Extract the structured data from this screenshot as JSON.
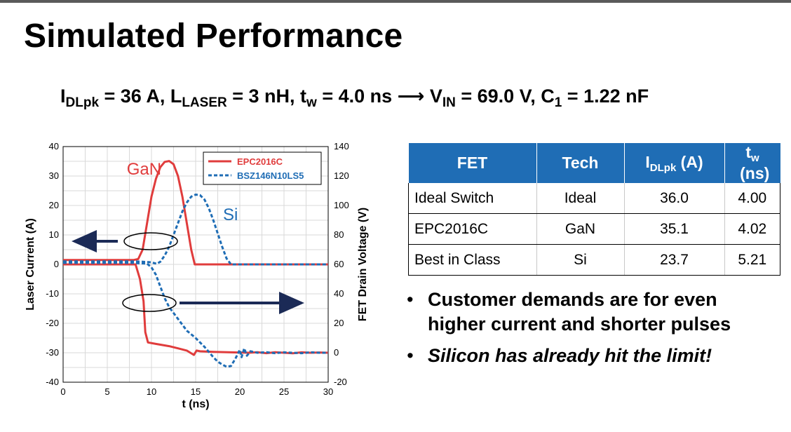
{
  "slide": {
    "title": "Simulated Performance",
    "equation": {
      "i_symbol": "I",
      "i_sub": "DLpk",
      "i_rest": " = 36 A, ",
      "l_symbol": "L",
      "l_sub": "LASER",
      "l_rest": " = 3 nH, ",
      "t_symbol": "t",
      "t_sub": "w",
      "t_rest": " = 4.0 ns ⟶ ",
      "v_symbol": "V",
      "v_sub": "IN",
      "v_rest": " = 69.0 V, ",
      "c_symbol": "C",
      "c_sub": "1",
      "c_rest": " = 1.22 nF"
    }
  },
  "table": {
    "headers": [
      {
        "text": "FET"
      },
      {
        "text": "Tech"
      },
      {
        "main": "I",
        "sub": "DLpk",
        "rest": " (A)"
      },
      {
        "main": "t",
        "sub": "w",
        "rest": " (ns)"
      }
    ],
    "rows": [
      [
        "Ideal Switch",
        "Ideal",
        "36.0",
        "4.00"
      ],
      [
        "EPC2016C",
        "GaN",
        "35.1",
        "4.02"
      ],
      [
        "Best in Class",
        "Si",
        "23.7",
        "5.21"
      ]
    ]
  },
  "bullets": [
    "Customer demands are for even higher current and shorter pulses",
    "Silicon has already hit the limit!"
  ],
  "chart_data": {
    "type": "line",
    "xlabel": "t (ns)",
    "ylabel": "Laser Current (A)",
    "y2label": "FET Drain Voltage (V)",
    "xlim": [
      0,
      30
    ],
    "ylim": [
      -40,
      40
    ],
    "y2lim": [
      -20,
      140
    ],
    "x_ticks": [
      0,
      5,
      10,
      15,
      20,
      25,
      30
    ],
    "y_ticks": [
      -40,
      -30,
      -20,
      -10,
      0,
      10,
      20,
      30,
      40
    ],
    "y2_ticks": [
      -20,
      0,
      20,
      40,
      60,
      80,
      100,
      120,
      140
    ],
    "grid": true,
    "legend_position": "top-right",
    "annotations": [
      {
        "text": "GaN",
        "x": 7.2,
        "y": 30.5,
        "color": "#e03c3c"
      },
      {
        "text": "Si",
        "x": 18.1,
        "y": 15.0,
        "color": "#1f6db5"
      }
    ],
    "series": [
      {
        "name": "EPC2016C",
        "color": "#e03c3c",
        "dash": false,
        "current": [
          [
            0,
            1.5
          ],
          [
            8,
            1.5
          ],
          [
            8.5,
            1.8
          ],
          [
            9,
            5
          ],
          [
            9.5,
            14
          ],
          [
            10,
            23
          ],
          [
            10.5,
            29
          ],
          [
            11,
            33
          ],
          [
            11.5,
            34.8
          ],
          [
            12,
            35.1
          ],
          [
            12.5,
            34
          ],
          [
            13,
            30
          ],
          [
            13.5,
            23
          ],
          [
            14,
            14
          ],
          [
            14.5,
            5
          ],
          [
            14.9,
            0
          ],
          [
            30,
            0
          ]
        ],
        "voltage": [
          [
            0,
            60
          ],
          [
            8.2,
            60
          ],
          [
            8.7,
            50
          ],
          [
            9.1,
            35
          ],
          [
            9.3,
            14
          ],
          [
            9.6,
            7
          ],
          [
            10.5,
            6
          ],
          [
            12,
            4.5
          ],
          [
            13,
            3
          ],
          [
            14,
            1.5
          ],
          [
            14.8,
            -1.5
          ],
          [
            15.1,
            1.5
          ],
          [
            15.5,
            1
          ],
          [
            17,
            0.6
          ],
          [
            19,
            0.3
          ],
          [
            21,
            0
          ],
          [
            22,
            0.4
          ],
          [
            23,
            -0.3
          ],
          [
            24,
            0.4
          ],
          [
            25,
            0
          ],
          [
            26,
            -0.4
          ],
          [
            27,
            0.3
          ],
          [
            28,
            0
          ],
          [
            29,
            0.2
          ],
          [
            30,
            0
          ]
        ]
      },
      {
        "name": "BSZ146N10LS5",
        "color": "#1f6db5",
        "dash": true,
        "current": [
          [
            0,
            1
          ],
          [
            8,
            1
          ],
          [
            9,
            0.9
          ],
          [
            10,
            0.7
          ],
          [
            10.6,
            0.2
          ],
          [
            11,
            0.9
          ],
          [
            11.5,
            3
          ],
          [
            12,
            6
          ],
          [
            12.5,
            10
          ],
          [
            13,
            14
          ],
          [
            13.5,
            18
          ],
          [
            14,
            21
          ],
          [
            14.5,
            23
          ],
          [
            15,
            23.7
          ],
          [
            15.5,
            23.5
          ],
          [
            16,
            22
          ],
          [
            16.5,
            19
          ],
          [
            17,
            15
          ],
          [
            17.5,
            10.5
          ],
          [
            18,
            6
          ],
          [
            18.5,
            2
          ],
          [
            19,
            0
          ],
          [
            30,
            0
          ]
        ],
        "voltage": [
          [
            0,
            61
          ],
          [
            8,
            61
          ],
          [
            9.5,
            60.5
          ],
          [
            10,
            58
          ],
          [
            10.5,
            53
          ],
          [
            11,
            45
          ],
          [
            11.5,
            37
          ],
          [
            12,
            31
          ],
          [
            13,
            23
          ],
          [
            14,
            15
          ],
          [
            15,
            10
          ],
          [
            16,
            4
          ],
          [
            17,
            -3
          ],
          [
            17.5,
            -6
          ],
          [
            18,
            -8
          ],
          [
            18.5,
            -9.5
          ],
          [
            19,
            -9
          ],
          [
            19.5,
            -4
          ],
          [
            20,
            2
          ],
          [
            20.2,
            -3
          ],
          [
            20.5,
            3
          ],
          [
            20.8,
            -2
          ],
          [
            21.2,
            1
          ],
          [
            22,
            0
          ],
          [
            23,
            0.4
          ],
          [
            24,
            -0.3
          ],
          [
            25,
            0.3
          ],
          [
            26,
            0
          ],
          [
            27,
            -0.3
          ],
          [
            28,
            0.3
          ],
          [
            29,
            0
          ],
          [
            30,
            0
          ]
        ]
      }
    ]
  }
}
